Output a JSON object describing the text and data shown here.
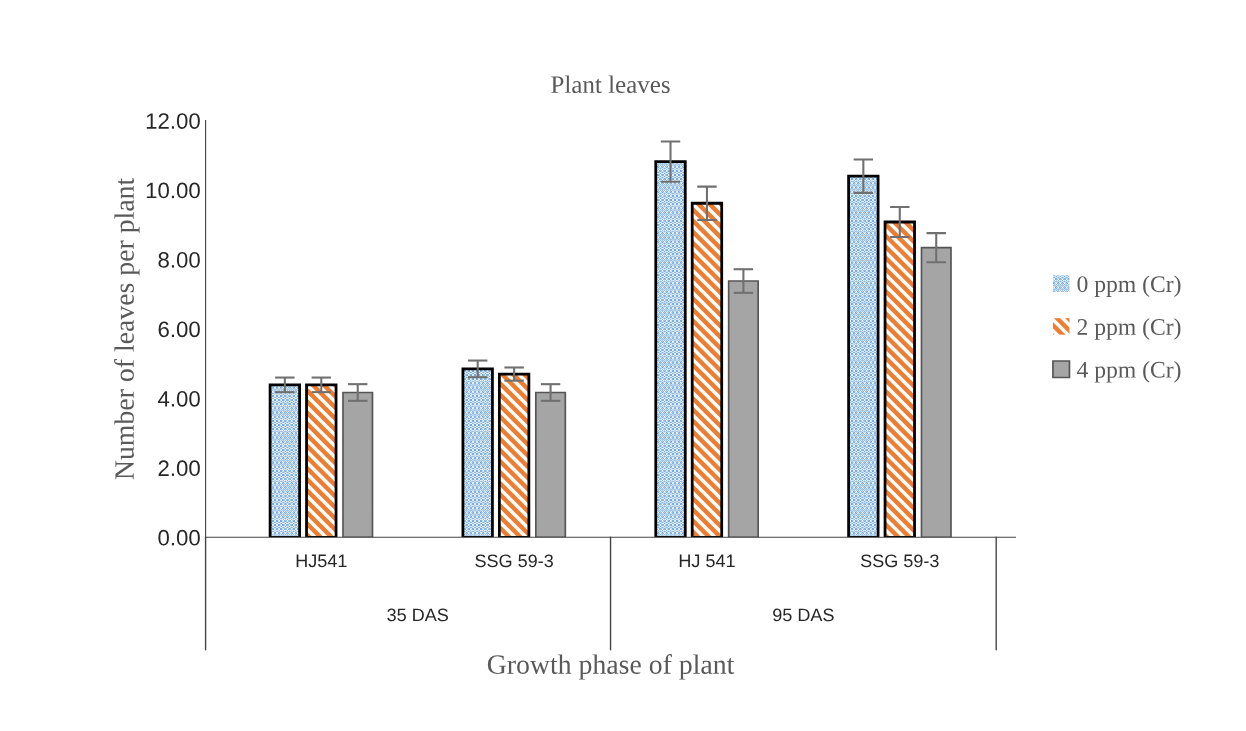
{
  "chart_data": {
    "type": "bar",
    "title": "Plant leaves",
    "xlabel": "Growth phase of plant",
    "ylabel": "Number of leaves per plant",
    "categories": [
      "HJ541",
      "SSG 59-3",
      "HJ 541",
      "SSG 59-3"
    ],
    "annotations": [
      "35 DAS",
      "95 DAS"
    ],
    "series": [
      {
        "name": "0 ppm (Cr)",
        "color": "#5b9bd5",
        "values": [
          4.39,
          4.85,
          10.82,
          10.4
        ],
        "errors": [
          0.21,
          0.24,
          0.58,
          0.48
        ]
      },
      {
        "name": "2 ppm (Cr)",
        "color": "#ed7d31",
        "values": [
          4.39,
          4.7,
          9.62,
          9.08
        ],
        "errors": [
          0.21,
          0.19,
          0.48,
          0.43
        ]
      },
      {
        "name": "4 ppm (Cr)",
        "color": "#a5a5a5",
        "values": [
          4.17,
          4.17,
          7.38,
          8.34
        ],
        "errors": [
          0.24,
          0.24,
          0.34,
          0.42
        ]
      }
    ],
    "ylim": [
      0,
      12
    ],
    "yticks": [
      {
        "value": 0,
        "label": "0.00"
      },
      {
        "value": 2,
        "label": "2.00"
      },
      {
        "value": 4,
        "label": "4.00"
      },
      {
        "value": 6,
        "label": "6.00"
      },
      {
        "value": 8,
        "label": "8.00"
      },
      {
        "value": 10,
        "label": "10.00"
      },
      {
        "value": 12,
        "label": "12.00"
      }
    ],
    "grid": false,
    "legend": "right"
  }
}
